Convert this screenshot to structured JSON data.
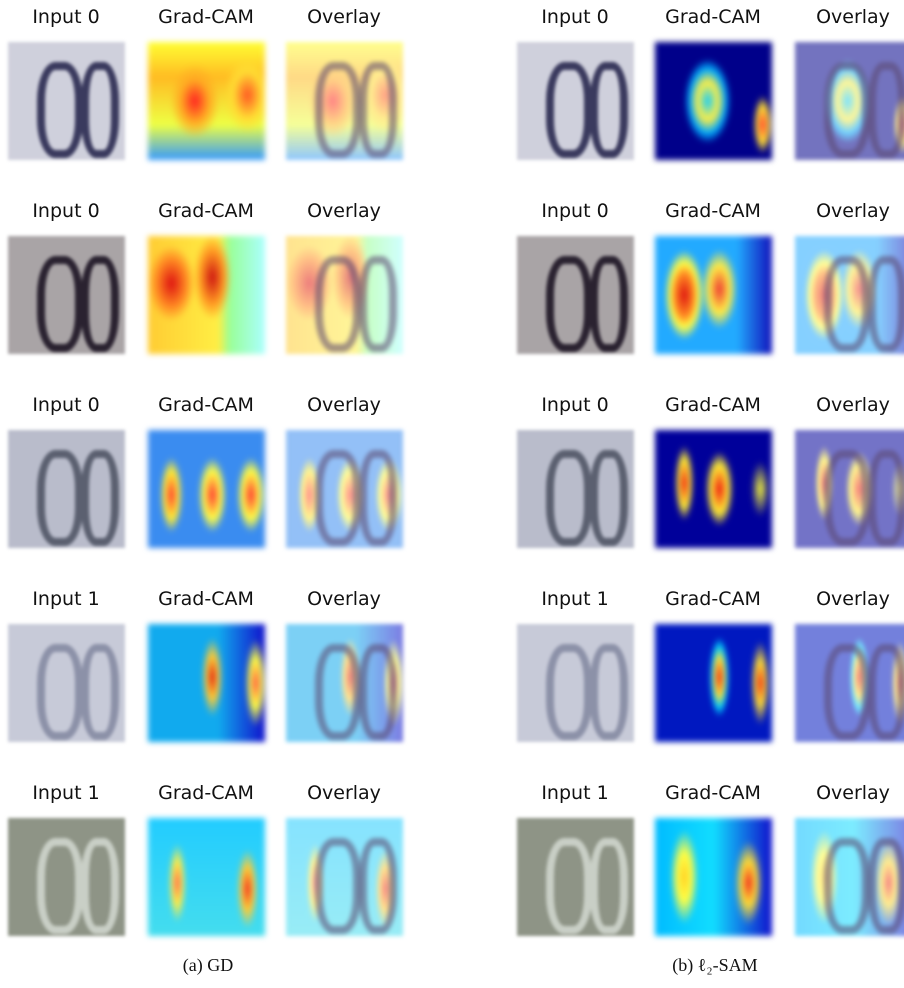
{
  "panels": [
    {
      "caption": "(a) GD",
      "rows": [
        {
          "titles": [
            "Input 0",
            "Grad-CAM",
            "Overlay"
          ]
        },
        {
          "titles": [
            "Input 0",
            "Grad-CAM",
            "Overlay"
          ]
        },
        {
          "titles": [
            "Input 0",
            "Grad-CAM",
            "Overlay"
          ]
        },
        {
          "titles": [
            "Input 1",
            "Grad-CAM",
            "Overlay"
          ]
        },
        {
          "titles": [
            "Input 1",
            "Grad-CAM",
            "Overlay"
          ]
        }
      ]
    },
    {
      "caption": "(b) ℓ₂-SAM",
      "rows": [
        {
          "titles": [
            "Input 0",
            "Grad-CAM",
            "Overlay"
          ]
        },
        {
          "titles": [
            "Input 0",
            "Grad-CAM",
            "Overlay"
          ]
        },
        {
          "titles": [
            "Input 0",
            "Grad-CAM",
            "Overlay"
          ]
        },
        {
          "titles": [
            "Input 1",
            "Grad-CAM",
            "Overlay"
          ]
        },
        {
          "titles": [
            "Input 1",
            "Grad-CAM",
            "Overlay"
          ]
        }
      ]
    }
  ]
}
